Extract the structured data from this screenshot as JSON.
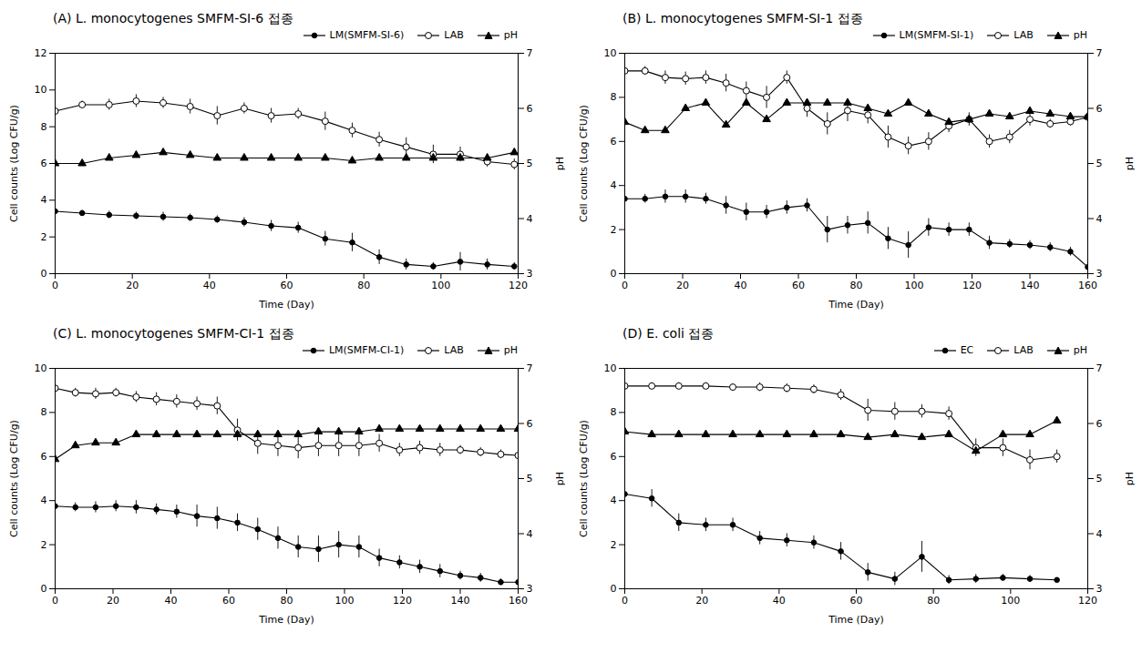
{
  "chart_data": [
    {
      "type": "line",
      "title": "(A) L. monocytogenes SMFM-SI-6 접종",
      "xlabel": "Time (Day)",
      "ylabel": "Cell counts (Log CFU/g)",
      "y2label": "pH",
      "x": [
        0,
        7,
        14,
        21,
        28,
        35,
        42,
        49,
        56,
        63,
        70,
        77,
        84,
        91,
        98,
        105,
        112,
        119
      ],
      "xlim": [
        0,
        120
      ],
      "xticks": [
        0,
        20,
        40,
        60,
        80,
        100,
        120
      ],
      "ylim": [
        0,
        12
      ],
      "yticks": [
        0,
        2,
        4,
        6,
        8,
        10,
        12
      ],
      "y2lim": [
        3,
        7
      ],
      "y2ticks": [
        3,
        4,
        5,
        6,
        7
      ],
      "grid": false,
      "legend": "upper right",
      "series": [
        {
          "name": "LM(SMFM-SI-6)",
          "color": "#000000",
          "marker": "circle",
          "line_style": "solid",
          "values": [
            3.4,
            3.3,
            3.2,
            3.15,
            3.1,
            3.05,
            2.95,
            2.8,
            2.6,
            2.5,
            1.9,
            1.7,
            0.9,
            0.5,
            0.4,
            0.65,
            0.5,
            0.4
          ],
          "error": [
            0.2,
            0.15,
            0.2,
            0.2,
            0.25,
            0.2,
            0.2,
            0.25,
            0.3,
            0.3,
            0.4,
            0.5,
            0.4,
            0.3,
            0.2,
            0.5,
            0.3,
            0.2
          ]
        },
        {
          "name": "LAB",
          "color": "#000000",
          "marker": "open_circle",
          "line_style": "solid",
          "values": [
            8.85,
            9.2,
            9.2,
            9.4,
            9.3,
            9.1,
            8.6,
            9.0,
            8.6,
            8.7,
            8.3,
            7.8,
            7.3,
            6.9,
            6.5,
            6.5,
            6.1,
            5.95
          ],
          "error": [
            0.3,
            0.2,
            0.3,
            0.35,
            0.3,
            0.4,
            0.5,
            0.3,
            0.4,
            0.3,
            0.5,
            0.4,
            0.4,
            0.5,
            0.5,
            0.4,
            0.3,
            0.3
          ]
        },
        {
          "name": "pH",
          "color": "#000000",
          "marker": "triangle",
          "line_style": "solid",
          "axis": "y2",
          "values": [
            5.0,
            5.0,
            5.1,
            5.15,
            5.2,
            5.15,
            5.1,
            5.1,
            5.1,
            5.1,
            5.1,
            5.05,
            5.1,
            5.1,
            5.1,
            5.1,
            5.1,
            5.2
          ]
        }
      ]
    },
    {
      "type": "line",
      "title": "(B) L. monocytogenes SMFM-SI-1 접종",
      "xlabel": "Time (Day)",
      "ylabel": "Cell counts (Log CFU/g)",
      "y2label": "pH",
      "x": [
        0,
        7,
        14,
        21,
        28,
        35,
        42,
        49,
        56,
        63,
        70,
        77,
        84,
        91,
        98,
        105,
        112,
        119,
        126,
        133,
        140,
        147,
        154,
        160
      ],
      "xlim": [
        0,
        160
      ],
      "xticks": [
        0,
        20,
        40,
        60,
        80,
        100,
        120,
        140,
        160
      ],
      "ylim": [
        0,
        10
      ],
      "yticks": [
        0,
        2,
        4,
        6,
        8,
        10
      ],
      "y2lim": [
        3,
        7
      ],
      "y2ticks": [
        3,
        4,
        5,
        6,
        7
      ],
      "grid": false,
      "legend": "upper right",
      "series": [
        {
          "name": "LM(SMFM-SI-1)",
          "color": "#000000",
          "marker": "circle",
          "line_style": "solid",
          "values": [
            3.4,
            3.4,
            3.5,
            3.5,
            3.4,
            3.1,
            2.8,
            2.8,
            3.0,
            3.1,
            2.0,
            2.2,
            2.3,
            1.6,
            1.3,
            2.1,
            2.0,
            2.0,
            1.4,
            1.35,
            1.3,
            1.2,
            1.0,
            0.3
          ],
          "error": [
            0.2,
            0.2,
            0.3,
            0.3,
            0.25,
            0.4,
            0.4,
            0.3,
            0.3,
            0.3,
            0.6,
            0.4,
            0.5,
            0.5,
            0.6,
            0.4,
            0.3,
            0.3,
            0.3,
            0.2,
            0.2,
            0.2,
            0.2,
            0.15
          ]
        },
        {
          "name": "LAB",
          "color": "#000000",
          "marker": "open_circle",
          "line_style": "solid",
          "values": [
            9.2,
            9.2,
            8.9,
            8.85,
            8.9,
            8.65,
            8.3,
            8.0,
            8.9,
            7.5,
            6.8,
            7.4,
            7.2,
            6.2,
            5.8,
            6.0,
            6.7,
            7.0,
            6.0,
            6.2,
            7.0,
            6.8,
            6.9,
            7.1
          ],
          "error": [
            0.25,
            0.2,
            0.3,
            0.3,
            0.3,
            0.4,
            0.4,
            0.5,
            0.3,
            0.4,
            0.5,
            0.5,
            0.4,
            0.5,
            0.4,
            0.4,
            0.3,
            0.3,
            0.3,
            0.3,
            0.3,
            0.2,
            0.2,
            0.2
          ]
        },
        {
          "name": "pH",
          "color": "#000000",
          "marker": "triangle",
          "line_style": "solid",
          "axis": "y2",
          "values": [
            5.75,
            5.6,
            5.6,
            6.0,
            6.1,
            5.7,
            6.1,
            5.8,
            6.1,
            6.1,
            6.1,
            6.1,
            6.0,
            5.9,
            6.1,
            5.9,
            5.75,
            5.8,
            5.9,
            5.85,
            5.95,
            5.9,
            5.85,
            5.85
          ]
        }
      ]
    },
    {
      "type": "line",
      "title": "(C) L. monocytogenes SMFM-CI-1 접종",
      "xlabel": "Time (Day)",
      "ylabel": "Cell counts (Log CFU/g)",
      "y2label": "pH",
      "x": [
        0,
        7,
        14,
        21,
        28,
        35,
        42,
        49,
        56,
        63,
        70,
        77,
        84,
        91,
        98,
        105,
        112,
        119,
        126,
        133,
        140,
        147,
        154,
        160
      ],
      "xlim": [
        0,
        160
      ],
      "xticks": [
        0,
        20,
        40,
        60,
        80,
        100,
        120,
        140,
        160
      ],
      "ylim": [
        0,
        10
      ],
      "yticks": [
        0,
        2,
        4,
        6,
        8,
        10
      ],
      "y2lim": [
        3,
        7
      ],
      "y2ticks": [
        3,
        4,
        5,
        6,
        7
      ],
      "grid": false,
      "legend": "upper right",
      "series": [
        {
          "name": "LM(SMFM-CI-1)",
          "color": "#000000",
          "marker": "circle",
          "line_style": "solid",
          "values": [
            3.75,
            3.7,
            3.7,
            3.75,
            3.7,
            3.6,
            3.5,
            3.3,
            3.2,
            3.0,
            2.7,
            2.3,
            1.9,
            1.8,
            2.0,
            1.9,
            1.4,
            1.2,
            1.0,
            0.8,
            0.6,
            0.5,
            0.3,
            0.3
          ],
          "error": [
            0.2,
            0.2,
            0.25,
            0.25,
            0.3,
            0.25,
            0.3,
            0.5,
            0.5,
            0.4,
            0.5,
            0.5,
            0.5,
            0.6,
            0.6,
            0.5,
            0.4,
            0.3,
            0.3,
            0.3,
            0.2,
            0.2,
            0.15,
            0.15
          ]
        },
        {
          "name": "LAB",
          "color": "#000000",
          "marker": "open_circle",
          "line_style": "solid",
          "values": [
            9.1,
            8.9,
            8.85,
            8.9,
            8.7,
            8.6,
            8.5,
            8.4,
            8.3,
            7.2,
            6.6,
            6.5,
            6.4,
            6.5,
            6.5,
            6.5,
            6.6,
            6.3,
            6.4,
            6.3,
            6.3,
            6.2,
            6.1,
            6.05
          ],
          "error": [
            0.2,
            0.2,
            0.25,
            0.2,
            0.25,
            0.3,
            0.3,
            0.3,
            0.4,
            0.5,
            0.5,
            0.5,
            0.5,
            0.5,
            0.5,
            0.5,
            0.4,
            0.3,
            0.3,
            0.3,
            0.2,
            0.2,
            0.2,
            0.15
          ]
        },
        {
          "name": "pH",
          "color": "#000000",
          "marker": "triangle",
          "line_style": "solid",
          "axis": "y2",
          "values": [
            5.35,
            5.6,
            5.65,
            5.65,
            5.8,
            5.8,
            5.8,
            5.8,
            5.8,
            5.8,
            5.8,
            5.8,
            5.8,
            5.85,
            5.85,
            5.85,
            5.9,
            5.9,
            5.9,
            5.9,
            5.9,
            5.9,
            5.9,
            5.9
          ]
        }
      ]
    },
    {
      "type": "line",
      "title": "(D) E. coli 접종",
      "xlabel": "Time (Day)",
      "ylabel": "Cell counts (Log CFU/g)",
      "y2label": "pH",
      "x": [
        0,
        7,
        14,
        21,
        28,
        35,
        42,
        49,
        56,
        63,
        70,
        77,
        84,
        91,
        98,
        105,
        112
      ],
      "xlim": [
        0,
        120
      ],
      "xticks": [
        0,
        20,
        40,
        60,
        80,
        100,
        120
      ],
      "ylim": [
        0,
        10
      ],
      "yticks": [
        0,
        2,
        4,
        6,
        8,
        10
      ],
      "y2lim": [
        3,
        7
      ],
      "y2ticks": [
        3,
        4,
        5,
        6,
        7
      ],
      "grid": false,
      "legend": "upper right",
      "series": [
        {
          "name": "EC",
          "color": "#000000",
          "marker": "circle",
          "line_style": "solid",
          "values": [
            4.3,
            4.1,
            3.0,
            2.9,
            2.9,
            2.3,
            2.2,
            2.1,
            1.7,
            0.75,
            0.45,
            1.45,
            0.4,
            0.45,
            0.5,
            0.45,
            0.4
          ],
          "error": [
            0.3,
            0.4,
            0.4,
            0.3,
            0.3,
            0.3,
            0.3,
            0.3,
            0.4,
            0.4,
            0.3,
            0.7,
            0.2,
            0.2,
            0.15,
            0.15,
            0.1
          ]
        },
        {
          "name": "LAB",
          "color": "#000000",
          "marker": "open_circle",
          "line_style": "solid",
          "values": [
            9.2,
            9.2,
            9.2,
            9.2,
            9.15,
            9.15,
            9.1,
            9.05,
            8.8,
            8.1,
            8.05,
            8.05,
            7.95,
            6.4,
            6.4,
            5.85,
            6.0
          ],
          "error": [
            0.15,
            0.15,
            0.15,
            0.15,
            0.15,
            0.2,
            0.2,
            0.2,
            0.25,
            0.5,
            0.4,
            0.3,
            0.3,
            0.4,
            0.4,
            0.45,
            0.3
          ]
        },
        {
          "name": "pH",
          "color": "#000000",
          "marker": "triangle",
          "line_style": "solid",
          "axis": "y2",
          "values": [
            5.85,
            5.8,
            5.8,
            5.8,
            5.8,
            5.8,
            5.8,
            5.8,
            5.8,
            5.75,
            5.8,
            5.75,
            5.8,
            5.5,
            5.8,
            5.8,
            6.05
          ]
        }
      ]
    }
  ]
}
